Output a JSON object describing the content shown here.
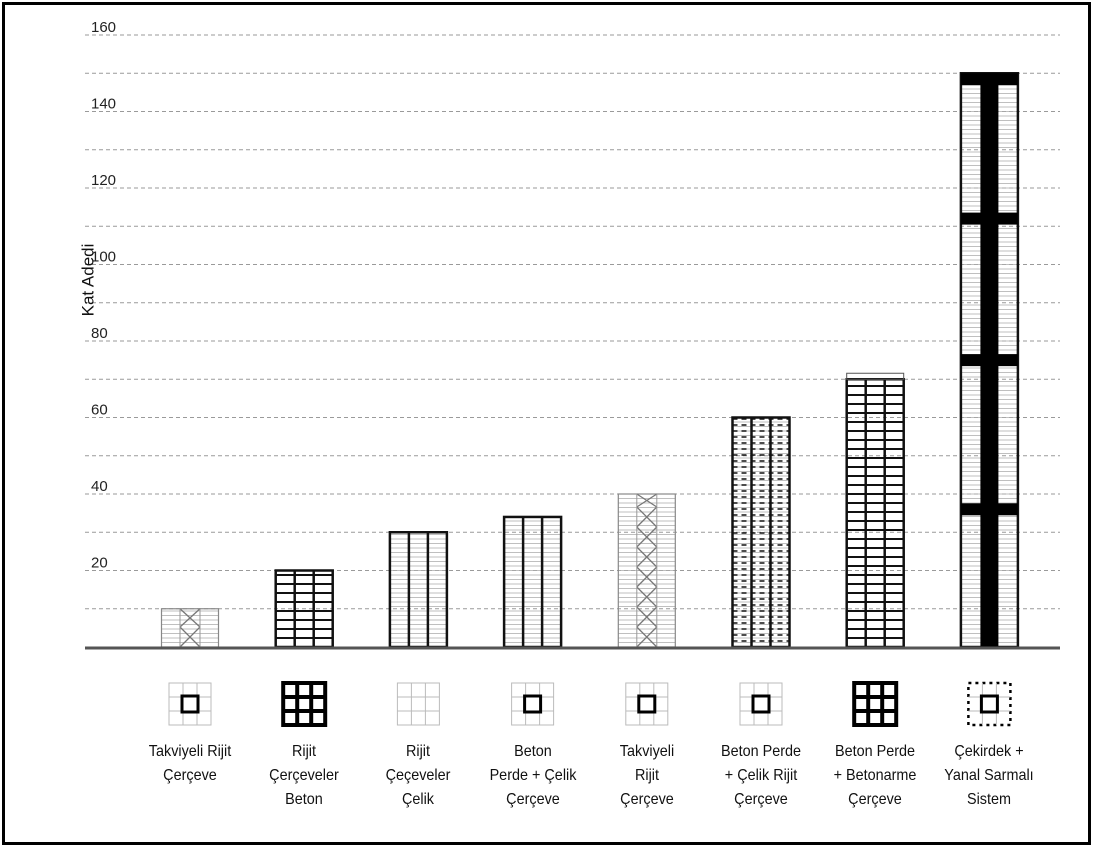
{
  "chart_data": {
    "type": "bar",
    "ylabel": "Kat Adedi",
    "xlabel": "",
    "ylim": [
      0,
      160
    ],
    "yticks": [
      "160",
      "140",
      "120",
      "100",
      "80",
      "60",
      "40",
      "20"
    ],
    "grid": true,
    "categories": [
      {
        "lines": [
          "Takviyeli Rijit",
          "Çerçeve"
        ],
        "value": 10,
        "style": "braced",
        "plan": "core-light-grid"
      },
      {
        "lines": [
          "Rijit",
          "Çerçeveler",
          "Beton"
        ],
        "value": 20,
        "style": "frame-heavy",
        "plan": "heavy-grid"
      },
      {
        "lines": [
          "Rijit",
          "Çeçeveler",
          "Çelik"
        ],
        "value": 30,
        "style": "frame-light",
        "plan": "light-grid"
      },
      {
        "lines": [
          "Beton",
          "Perde + Çelik",
          "Çerçeve"
        ],
        "value": 34,
        "style": "frame-light",
        "plan": "core-light-grid"
      },
      {
        "lines": [
          "Takviyeli",
          "Rijit",
          "Çerçeve"
        ],
        "value": 40,
        "style": "braced",
        "plan": "core-light-grid"
      },
      {
        "lines": [
          "Beton Perde",
          "+ Çelik Rijit",
          "Çerçeve"
        ],
        "value": 60,
        "style": "frame-dashed",
        "plan": "core-light-grid"
      },
      {
        "lines": [
          "Beton Perde",
          "+ Betonarme",
          "Çerçeve"
        ],
        "value": 70,
        "style": "frame-dense",
        "plan": "heavy-grid"
      },
      {
        "lines": [
          "Çekirdek +",
          "Yanal Sarmalı",
          "Sistem"
        ],
        "value": 150,
        "style": "core-outrigger",
        "plan": "core-dotted"
      }
    ]
  }
}
